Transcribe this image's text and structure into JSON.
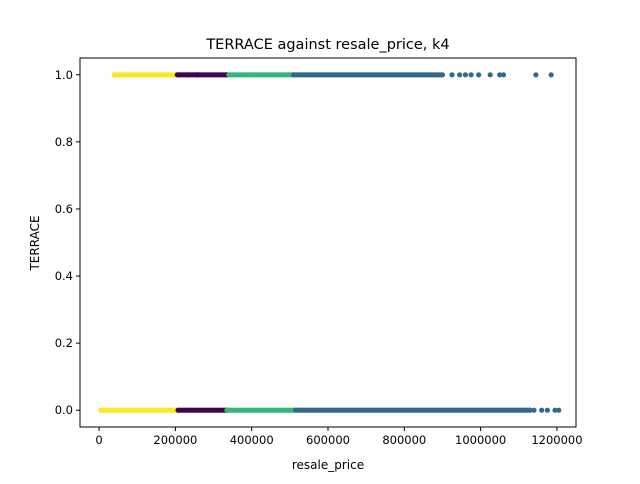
{
  "chart_data": {
    "type": "scatter",
    "title": "TERRACE against resale_price, k4",
    "xlabel": "resale_price",
    "ylabel": "TERRACE",
    "xlim": [
      -50000,
      1250000
    ],
    "ylim": [
      -0.05,
      1.05
    ],
    "xticks": [
      0,
      200000,
      400000,
      600000,
      800000,
      1000000,
      1200000
    ],
    "xtick_labels": [
      "0",
      "200000",
      "400000",
      "600000",
      "800000",
      "1000000",
      "1200000"
    ],
    "yticks": [
      0.0,
      0.2,
      0.4,
      0.6,
      0.8,
      1.0
    ],
    "ytick_labels": [
      "0.0",
      "0.2",
      "0.4",
      "0.6",
      "0.8",
      "1.0"
    ],
    "grid": false,
    "legend": "none",
    "series": [
      {
        "color": "#fde725",
        "ranges": [
          {
            "y": 0,
            "from": 5000,
            "to": 207000
          },
          {
            "y": 1,
            "from": 40000,
            "to": 200000
          }
        ],
        "points": [
          {
            "x": 5000,
            "y": 0
          },
          {
            "x": 40000,
            "y": 1
          }
        ]
      },
      {
        "color": "#440154",
        "ranges": [
          {
            "y": 0,
            "from": 207000,
            "to": 335000
          },
          {
            "y": 1,
            "from": 205000,
            "to": 335000
          }
        ],
        "points": [
          {
            "x": 210000,
            "y": 1
          },
          {
            "x": 232000,
            "y": 1
          },
          {
            "x": 258000,
            "y": 1
          }
        ]
      },
      {
        "color": "#35b779",
        "ranges": [
          {
            "y": 0,
            "from": 335000,
            "to": 515000
          },
          {
            "y": 1,
            "from": 340000,
            "to": 510000
          }
        ],
        "points": []
      },
      {
        "color": "#31688e",
        "ranges": [
          {
            "y": 0,
            "from": 515000,
            "to": 1130000
          },
          {
            "y": 1,
            "from": 510000,
            "to": 900000
          }
        ],
        "points": [
          {
            "x": 1140000,
            "y": 0
          },
          {
            "x": 1160000,
            "y": 0
          },
          {
            "x": 1175000,
            "y": 0
          },
          {
            "x": 1195000,
            "y": 0
          },
          {
            "x": 1205000,
            "y": 0
          },
          {
            "x": 925000,
            "y": 1
          },
          {
            "x": 945000,
            "y": 1
          },
          {
            "x": 960000,
            "y": 1
          },
          {
            "x": 975000,
            "y": 1
          },
          {
            "x": 995000,
            "y": 1
          },
          {
            "x": 1025000,
            "y": 1
          },
          {
            "x": 1050000,
            "y": 1
          },
          {
            "x": 1060000,
            "y": 1
          },
          {
            "x": 1145000,
            "y": 1
          },
          {
            "x": 1185000,
            "y": 1
          }
        ]
      }
    ]
  }
}
